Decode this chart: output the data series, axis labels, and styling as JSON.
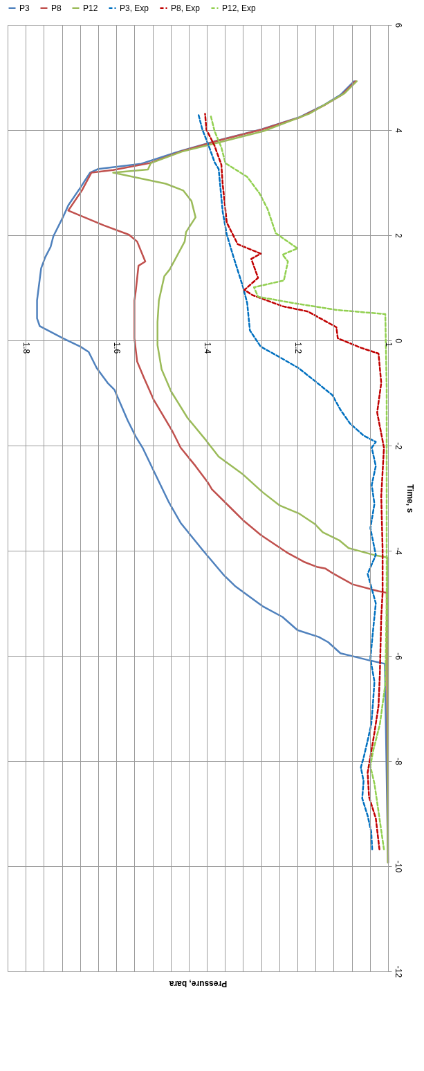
{
  "chart_data": {
    "type": "line",
    "xlabel": "Pressure, bara",
    "ylabel": "Time, s",
    "legend": "top",
    "grid": true,
    "ylim": [
      -12,
      6
    ],
    "yticks": [
      -12,
      -10,
      -8,
      -6,
      -4,
      -2,
      0,
      2,
      4,
      6
    ],
    "xlim": [
      1.84,
      1
    ],
    "xticks": [
      1,
      {
        "value": 1.04,
        "label": null
      },
      {
        "value": 1.08,
        "label": null
      },
      {
        "value": 1.12,
        "label": null
      },
      {
        "value": 1.16,
        "label": null
      },
      1.2,
      {
        "value": 1.24,
        "label": null
      },
      {
        "value": 1.28,
        "label": null
      },
      {
        "value": 1.32,
        "label": null
      },
      {
        "value": 1.36,
        "label": null
      },
      1.4,
      {
        "value": 1.44,
        "label": null
      },
      {
        "value": 1.48,
        "label": null
      },
      {
        "value": 1.52,
        "label": null
      },
      {
        "value": 1.56,
        "label": null
      },
      1.6,
      {
        "value": 1.64,
        "label": null
      },
      {
        "value": 1.68,
        "label": null
      },
      {
        "value": 1.72,
        "label": null
      },
      {
        "value": 1.76,
        "label": null
      },
      1.8,
      {
        "value": 1.84,
        "label": null
      }
    ],
    "series": [
      {
        "name": "P3",
        "color": "#4f81bd",
        "line_style": "solid",
        "values": [
          -9.93,
          -6.15,
          -6.09,
          -5.95,
          -5.74,
          -5.64,
          -5.51,
          -5.26,
          -5.05,
          -4.67,
          -4.47,
          -3.98,
          -3.47,
          -3.06,
          -2.47,
          -2.04,
          -1.83,
          -1.52,
          -0.94,
          -0.81,
          -0.53,
          -0.22,
          -0.12,
          0.04,
          0.27,
          0.42,
          0.76,
          1.37,
          1.58,
          1.78,
          1.98,
          2.34,
          2.57,
          2.91,
          3.19,
          3.26,
          3.36,
          3.61,
          3.8,
          4.01,
          4.24,
          4.48,
          4.67,
          4.93
        ],
        "x": [
          1.0,
          1.007,
          1.039,
          1.105,
          1.132,
          1.153,
          1.2,
          1.233,
          1.278,
          1.338,
          1.362,
          1.41,
          1.458,
          1.485,
          1.518,
          1.542,
          1.557,
          1.575,
          1.604,
          1.619,
          1.643,
          1.661,
          1.679,
          1.718,
          1.769,
          1.775,
          1.775,
          1.766,
          1.757,
          1.745,
          1.739,
          1.718,
          1.706,
          1.679,
          1.658,
          1.64,
          1.545,
          1.455,
          1.377,
          1.281,
          1.197,
          1.141,
          1.105,
          1.075
        ]
      },
      {
        "name": "P8",
        "color": "#c0504d",
        "line_style": "solid",
        "values": [
          -9.93,
          -4.8,
          -4.77,
          -4.64,
          -4.44,
          -4.34,
          -4.31,
          -4.21,
          -4.03,
          -3.7,
          -3.42,
          -3.24,
          -2.83,
          -2.7,
          -2.39,
          -2.04,
          -1.73,
          -1.12,
          -0.71,
          -0.4,
          0.04,
          0.76,
          0.94,
          1.42,
          1.5,
          1.88,
          2.01,
          2.19,
          2.47,
          2.85,
          3.19,
          3.24,
          3.37,
          3.6,
          3.8,
          4.01,
          4.24,
          4.48,
          4.67,
          4.93
        ],
        "x": [
          1.0,
          1.003,
          1.021,
          1.078,
          1.12,
          1.138,
          1.156,
          1.186,
          1.224,
          1.281,
          1.32,
          1.341,
          1.389,
          1.398,
          1.425,
          1.458,
          1.476,
          1.518,
          1.539,
          1.554,
          1.56,
          1.56,
          1.557,
          1.551,
          1.536,
          1.554,
          1.572,
          1.628,
          1.706,
          1.676,
          1.655,
          1.607,
          1.527,
          1.455,
          1.375,
          1.279,
          1.195,
          1.139,
          1.102,
          1.072
        ]
      },
      {
        "name": "P12",
        "color": "#9bbb59",
        "line_style": "solid",
        "values": [
          -9.93,
          -4.13,
          -4.09,
          -3.95,
          -3.8,
          -3.65,
          -3.49,
          -3.29,
          -3.14,
          -2.88,
          -2.55,
          -2.21,
          -1.91,
          -1.47,
          -0.97,
          -0.55,
          -0.09,
          0.35,
          0.76,
          1.22,
          1.35,
          1.88,
          2.06,
          2.34,
          2.65,
          2.85,
          2.98,
          3.19,
          3.25,
          3.37,
          3.59,
          3.77,
          3.98,
          4.31,
          4.7,
          4.93
        ],
        "x": [
          1.0,
          1.0,
          1.027,
          1.087,
          1.108,
          1.144,
          1.162,
          1.197,
          1.239,
          1.278,
          1.32,
          1.374,
          1.401,
          1.443,
          1.479,
          1.5,
          1.509,
          1.509,
          1.506,
          1.494,
          1.482,
          1.449,
          1.446,
          1.425,
          1.434,
          1.452,
          1.491,
          1.607,
          1.53,
          1.524,
          1.455,
          1.371,
          1.275,
          1.174,
          1.096,
          1.069
        ]
      },
      {
        "name": "P3, Exp",
        "color": "#0070c0",
        "line_style": "dashed",
        "values": [
          -9.68,
          -9.35,
          -9.04,
          -8.71,
          -8.38,
          -8.12,
          -7.94,
          -7.61,
          -7.3,
          -6.87,
          -6.49,
          -6.05,
          -5.51,
          -5.0,
          -4.44,
          -4.08,
          -3.57,
          -3.11,
          -2.75,
          -2.39,
          -2.04,
          -1.93,
          -1.81,
          -1.58,
          -1.32,
          -1.04,
          -0.81,
          -0.53,
          -0.32,
          -0.12,
          0.19,
          0.71,
          1.01,
          1.58,
          2.01,
          2.44,
          3.26,
          3.39,
          3.75,
          4.01,
          4.31
        ],
        "x": [
          1.035,
          1.037,
          1.045,
          1.057,
          1.054,
          1.06,
          1.054,
          1.045,
          1.037,
          1.033,
          1.03,
          1.039,
          1.033,
          1.027,
          1.045,
          1.027,
          1.039,
          1.03,
          1.036,
          1.027,
          1.036,
          1.027,
          1.054,
          1.084,
          1.105,
          1.123,
          1.156,
          1.197,
          1.239,
          1.281,
          1.305,
          1.311,
          1.32,
          1.341,
          1.356,
          1.365,
          1.374,
          1.383,
          1.398,
          1.41,
          1.419
        ]
      },
      {
        "name": "P8, Exp",
        "color": "#c00000",
        "line_style": "dashed",
        "values": [
          -9.68,
          -9.09,
          -8.68,
          -8.22,
          -7.92,
          -7.46,
          -6.95,
          -6.33,
          -5.26,
          -4.8,
          -3.98,
          -2.96,
          -2.04,
          -1.37,
          -0.81,
          -0.25,
          -0.14,
          0.04,
          0.25,
          0.55,
          0.65,
          0.86,
          0.96,
          1.19,
          1.55,
          1.65,
          1.83,
          2.24,
          2.96,
          3.34,
          3.7,
          4.01,
          4.31
        ],
        "x": [
          1.019,
          1.027,
          1.042,
          1.045,
          1.039,
          1.03,
          1.021,
          1.018,
          1.015,
          1.012,
          1.012,
          1.015,
          1.009,
          1.024,
          1.015,
          1.021,
          1.06,
          1.111,
          1.114,
          1.177,
          1.233,
          1.299,
          1.317,
          1.287,
          1.302,
          1.281,
          1.332,
          1.356,
          1.365,
          1.368,
          1.383,
          1.401,
          1.404
        ]
      },
      {
        "name": "P12, Exp",
        "color": "#92d050",
        "line_style": "dashed",
        "values": [
          -9.68,
          -9.14,
          -8.43,
          -8.1,
          -7.81,
          -7.3,
          -6.54,
          -5.0,
          -2.96,
          -0.91,
          0.5,
          0.58,
          0.71,
          0.83,
          1.01,
          1.14,
          1.5,
          1.63,
          1.75,
          2.04,
          2.5,
          2.8,
          3.11,
          3.37,
          3.67,
          3.98,
          4.29
        ],
        "x": [
          1.009,
          1.018,
          1.03,
          1.039,
          1.033,
          1.018,
          1.006,
          1.003,
          1.003,
          1.003,
          1.006,
          1.114,
          1.209,
          1.287,
          1.296,
          1.23,
          1.221,
          1.233,
          1.2,
          1.248,
          1.266,
          1.284,
          1.311,
          1.359,
          1.368,
          1.383,
          1.392
        ]
      }
    ]
  }
}
